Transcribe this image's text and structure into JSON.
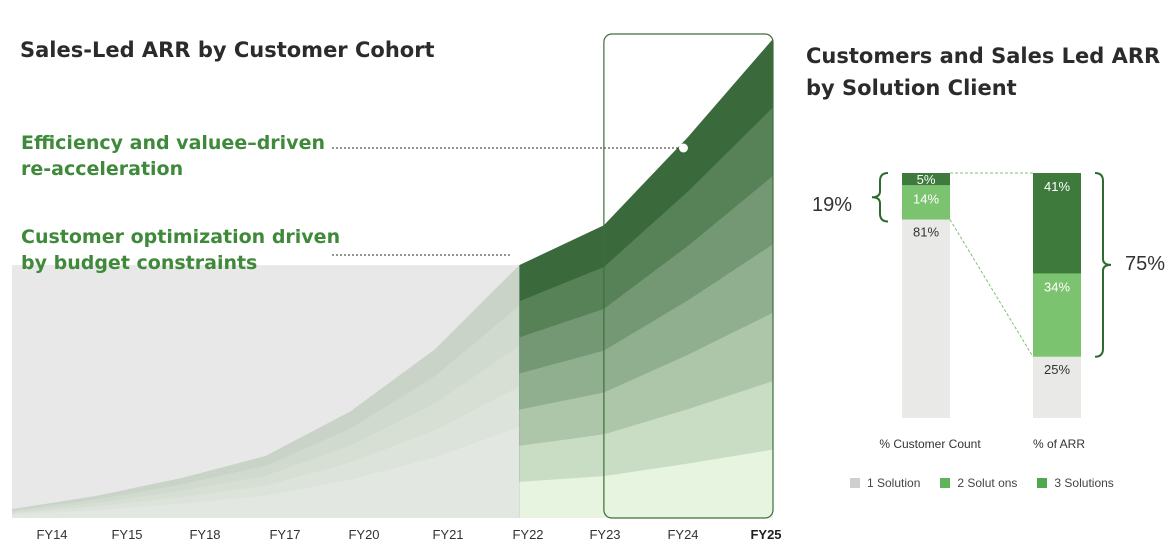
{
  "left_chart": {
    "title": "Sales-Led ARR by Customer Cohort",
    "annotations": [
      "Efficiency and valuee–driven\nre-acceleration",
      "Customer optimization driven\nby budget constraints"
    ]
  },
  "right_chart": {
    "title": "Customers and Sales Led ARR\nby Solution Client",
    "bracket_left": "19%",
    "bracket_right": "75%"
  },
  "colors": {
    "historic_grey": "#e8e8e8",
    "cohort_darkest": "#3a6a3c",
    "cohort_lightest": "#e6f4e0",
    "one_solution": "#e9e9e7",
    "two_solutions": "#7cc36f",
    "three_solutions": "#3e7a3c",
    "annotation_green": "#3f8a3a"
  },
  "chart_data": [
    {
      "type": "area",
      "title": "Sales-Led ARR by Customer Cohort",
      "categories": [
        "FY14",
        "FY15",
        "FY18",
        "FY17",
        "FY20",
        "FY21",
        "FY22",
        "FY23",
        "FY24",
        "FY25"
      ],
      "total": [
        2,
        5,
        9,
        14,
        24,
        38,
        57,
        66,
        86,
        108
      ],
      "cohort_layers": 7,
      "highlight_category": "FY25",
      "highlighted_range": [
        "FY23",
        "FY25"
      ],
      "annotations": [
        {
          "text": "Efficiency and valuee–driven re-acceleration",
          "at": "FY24"
        },
        {
          "text": "Customer optimization driven by budget constraints",
          "at": "FY22"
        }
      ],
      "ylim": [
        0,
        110
      ]
    },
    {
      "type": "bar",
      "stacked": true,
      "title": "Customers and Sales Led ARR by Solution Client",
      "categories": [
        "% Customer Count",
        "% of ARR"
      ],
      "series": [
        {
          "name": "1 Solution",
          "values": [
            81,
            25
          ],
          "labels": [
            "81%",
            "25%"
          ]
        },
        {
          "name": "2 Solut ons",
          "values": [
            14,
            34
          ],
          "labels": [
            "14%",
            "34%"
          ]
        },
        {
          "name": "3 Solutions",
          "values": [
            5,
            41
          ],
          "labels": [
            "5%",
            "41%"
          ]
        }
      ],
      "legend": [
        "1 Solution",
        "2 Solut ons",
        "3 Solutions"
      ],
      "legend_position": "bottom"
    }
  ]
}
